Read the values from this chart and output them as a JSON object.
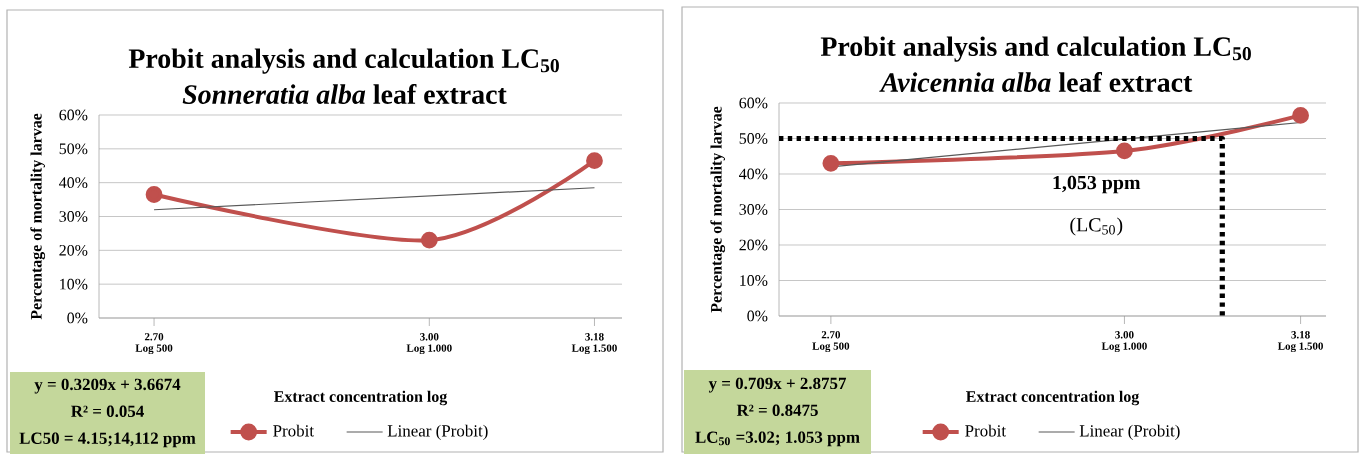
{
  "chart_data": [
    {
      "type": "line",
      "title": "Probit analysis and calculation LC$_{50}$",
      "subtitle": "*Sonneratia alba* leaf extract",
      "xlabel": "Extract concentration log",
      "ylabel": "Percentage of mortality larvae",
      "annotations": [
        "Log 500",
        "Log 1.000",
        "Log 1.500",
        "y = 0.3209x + 3.6674",
        "R² = 0.054",
        "LC50 = 4.15;14,112 ppm"
      ],
      "xlim": [
        2.64,
        3.21
      ],
      "xticks": [
        {
          "value": 2.7,
          "label": "2.70"
        },
        {
          "value": 3.0,
          "label": "3.00"
        },
        {
          "value": 3.18,
          "label": "3.18"
        }
      ],
      "ylim": [
        0,
        60
      ],
      "yticks": [
        {
          "value": 0,
          "label": "0%"
        },
        {
          "value": 10,
          "label": "10%"
        },
        {
          "value": 20,
          "label": "20%"
        },
        {
          "value": 30,
          "label": "30%"
        },
        {
          "value": 40,
          "label": "40%"
        },
        {
          "value": 50,
          "label": "50%"
        },
        {
          "value": 60,
          "label": "60%"
        }
      ],
      "grid": "y",
      "legend": "bottom",
      "series": [
        {
          "name": "Probit",
          "color": "#c0504d",
          "marker": "circle",
          "line_style": "solid",
          "x": [
            2.7,
            3.0,
            3.18
          ],
          "values": [
            36.5,
            23,
            46.5
          ]
        },
        {
          "name": "Linear (Probit)",
          "color": "#595959",
          "marker": "none",
          "line_style": "solid",
          "x": [
            2.7,
            3.18
          ],
          "values": [
            32,
            38.5
          ]
        }
      ]
    },
    {
      "type": "line",
      "title": "Probit analysis and calculation LC$_{50}$",
      "subtitle": "*Avicennia alba* leaf extract",
      "xlabel": "Extract concentration log",
      "ylabel": "Percentage of mortality larvae",
      "annotations": [
        "Log 500",
        "Log 1.000",
        "Log 1.500",
        "1,053 ppm",
        "(LC$_{50}$)",
        "y = 0.709x + 2.8757",
        "R² = 0.8475",
        "LC$_{50}$ =3.02; 1.053 ppm"
      ],
      "xlim": [
        2.647,
        3.206
      ],
      "xticks": [
        {
          "value": 2.7,
          "label": "2.70"
        },
        {
          "value": 3.0,
          "label": "3.00"
        },
        {
          "value": 3.18,
          "label": "3.18"
        }
      ],
      "ylim": [
        0,
        60
      ],
      "yticks": [
        {
          "value": 0,
          "label": "0%"
        },
        {
          "value": 10,
          "label": "10%"
        },
        {
          "value": 20,
          "label": "20%"
        },
        {
          "value": 30,
          "label": "30%"
        },
        {
          "value": 40,
          "label": "40%"
        },
        {
          "value": 50,
          "label": "50%"
        },
        {
          "value": 60,
          "label": "60%"
        }
      ],
      "grid": "y",
      "legend": "bottom",
      "series": [
        {
          "name": "Probit",
          "color": "#c0504d",
          "marker": "circle",
          "line_style": "solid",
          "x": [
            2.7,
            3.0,
            3.18
          ],
          "values": [
            43,
            46.5,
            56.5
          ]
        },
        {
          "name": "Linear (Probit)",
          "color": "#595959",
          "marker": "none",
          "line_style": "solid",
          "x": [
            2.7,
            3.18
          ],
          "values": [
            42,
            54.5
          ]
        },
        {
          "color": "#000000",
          "marker": "none",
          "line_style": "dotted",
          "x": [
            2.647,
            3.1,
            3.1
          ],
          "values": [
            50,
            50,
            0
          ]
        }
      ]
    }
  ]
}
